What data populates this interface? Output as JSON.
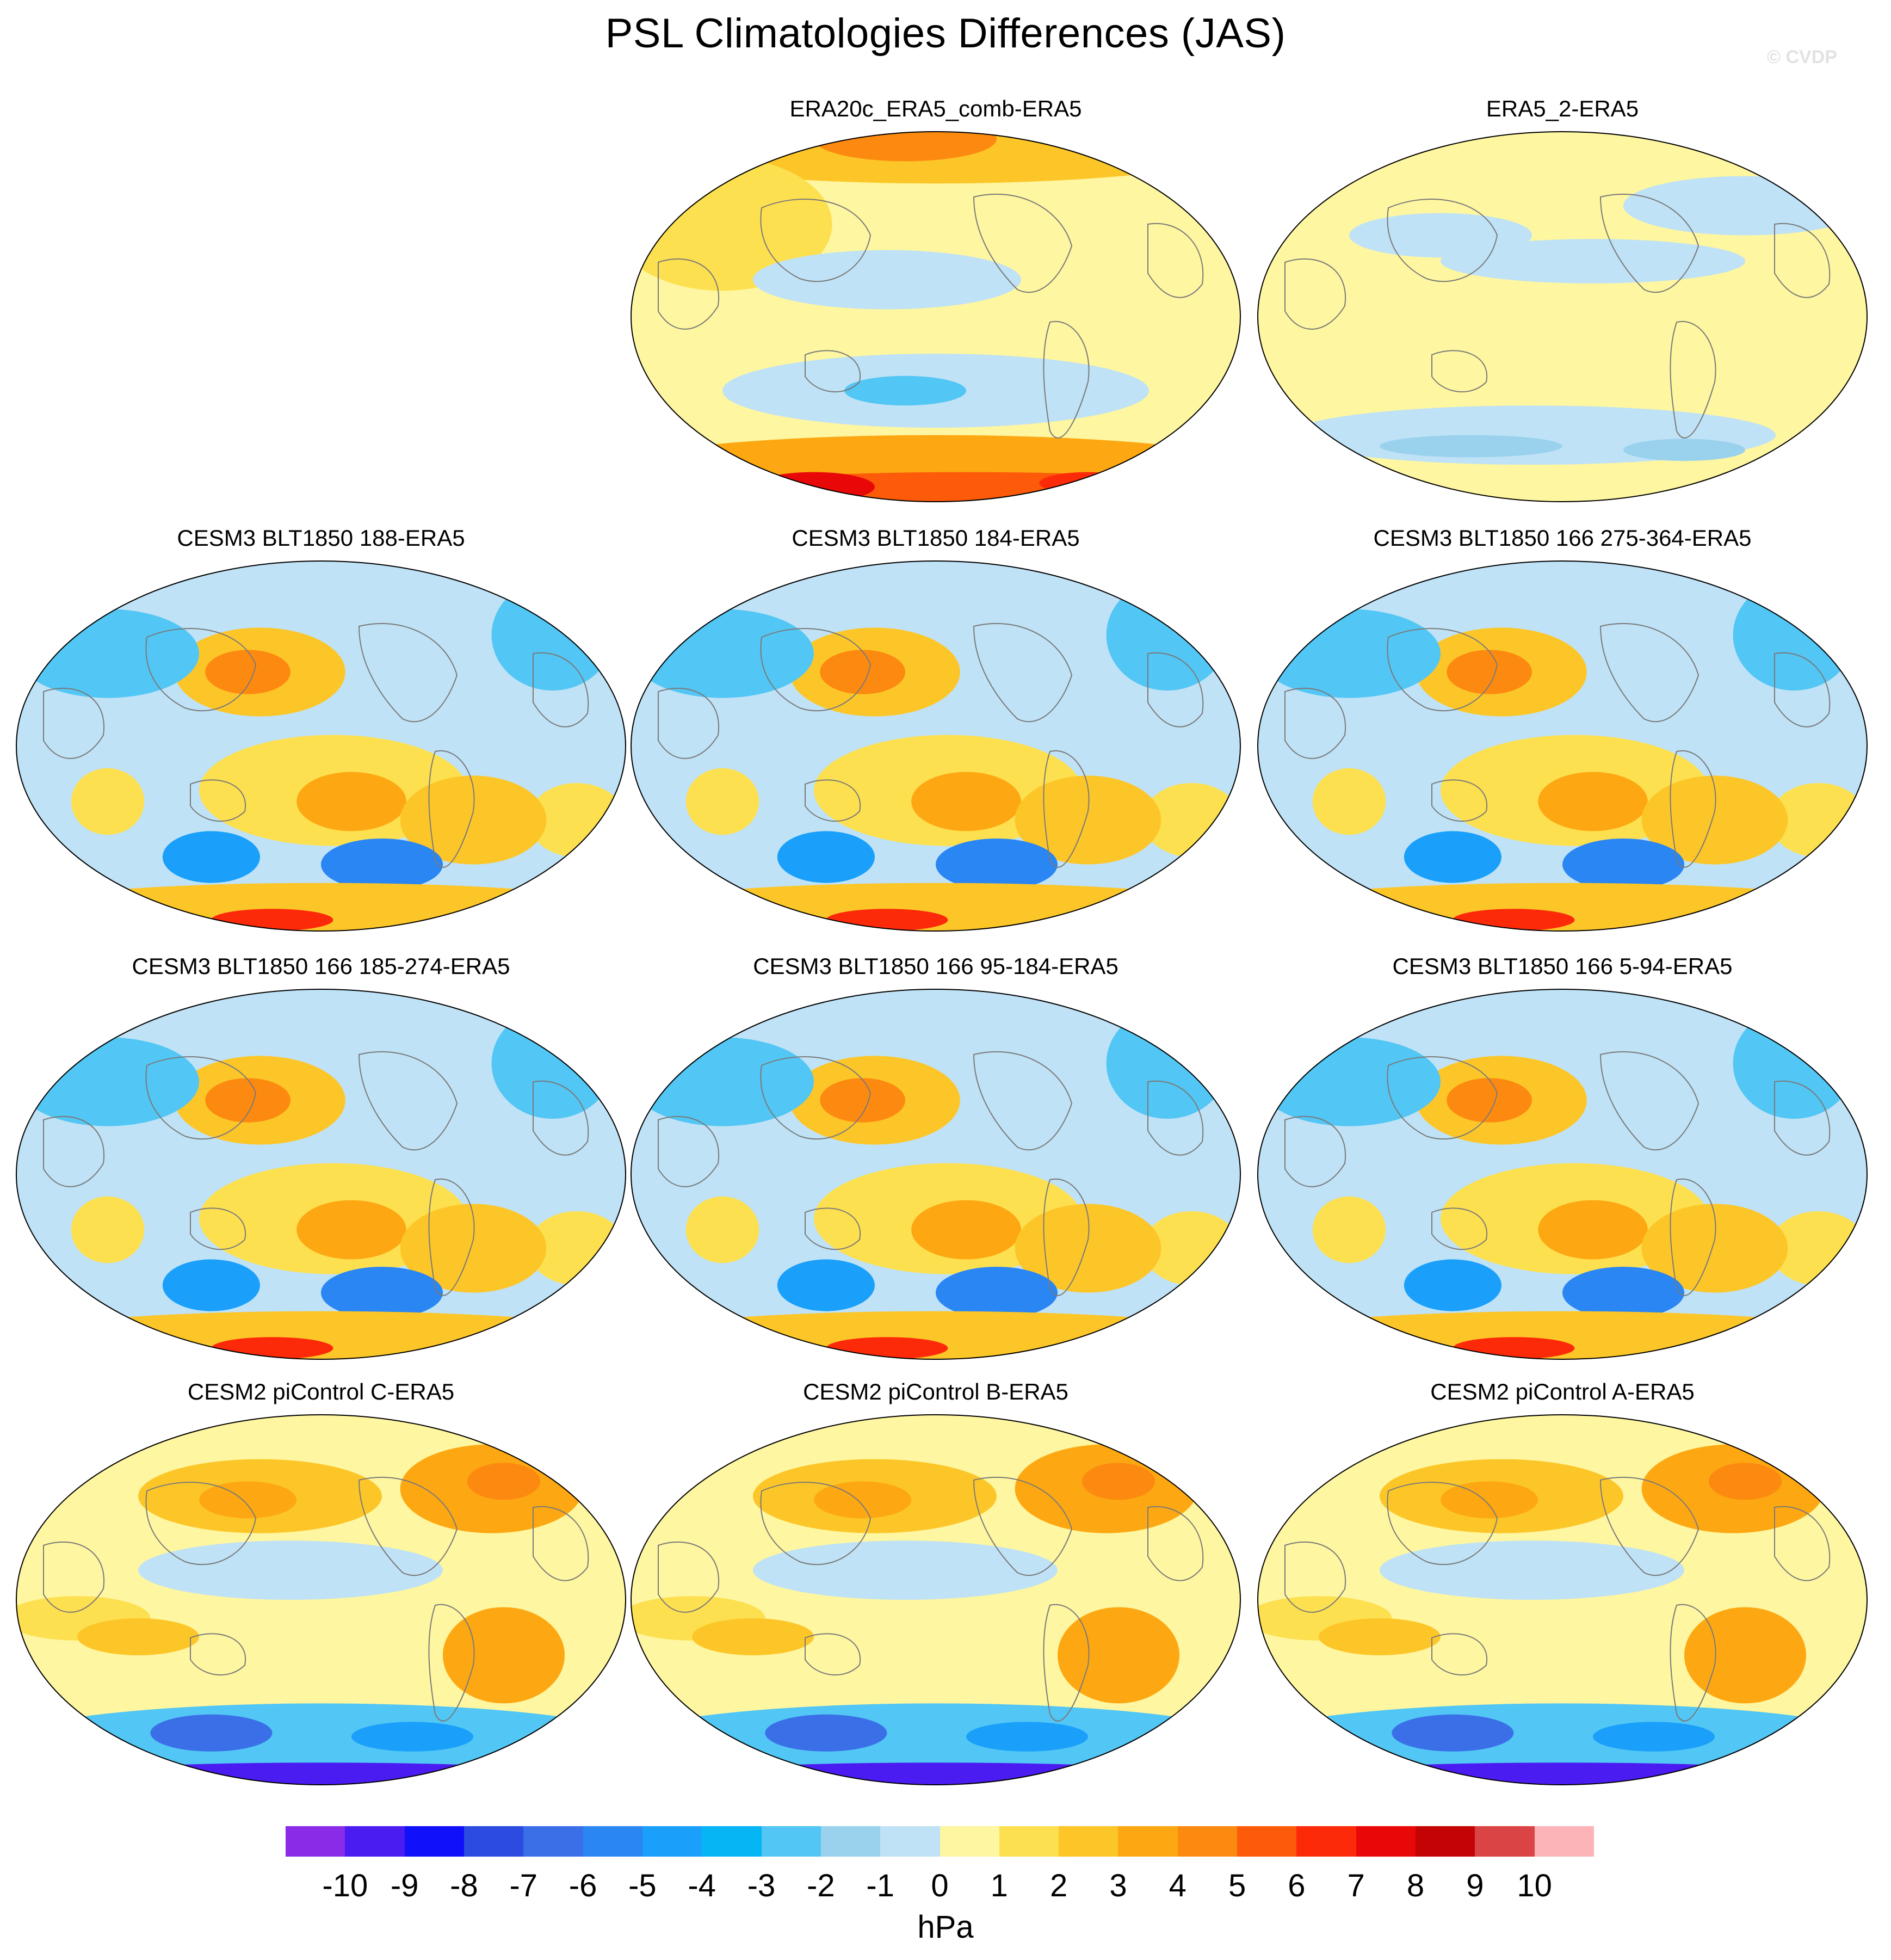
{
  "title": "PSL Climatologies Differences (JAS)",
  "watermark": "© CVDP",
  "panels": [
    {
      "id": "p1",
      "title": "ERA20c_ERA5_comb-ERA5",
      "pattern": "reanalysis_warm"
    },
    {
      "id": "p2",
      "title": "ERA5_2-ERA5",
      "pattern": "reanalysis_neutral"
    },
    {
      "id": "p3",
      "title": "CESM3 BLT1850 188-ERA5",
      "pattern": "cesm3"
    },
    {
      "id": "p4",
      "title": "CESM3 BLT1850 184-ERA5",
      "pattern": "cesm3"
    },
    {
      "id": "p5",
      "title": "CESM3 BLT1850 166 275-364-ERA5",
      "pattern": "cesm3"
    },
    {
      "id": "p6",
      "title": "CESM3 BLT1850 166 185-274-ERA5",
      "pattern": "cesm3"
    },
    {
      "id": "p7",
      "title": "CESM3 BLT1850 166 95-184-ERA5",
      "pattern": "cesm3"
    },
    {
      "id": "p8",
      "title": "CESM3 BLT1850 166 5-94-ERA5",
      "pattern": "cesm3"
    },
    {
      "id": "p9",
      "title": "CESM2 piControl C-ERA5",
      "pattern": "cesm2"
    },
    {
      "id": "p10",
      "title": "CESM2 piControl B-ERA5",
      "pattern": "cesm2"
    },
    {
      "id": "p11",
      "title": "CESM2 piControl A-ERA5",
      "pattern": "cesm2"
    }
  ],
  "colorbar": {
    "units": "hPa",
    "tick_labels": [
      "-10",
      "-9",
      "-8",
      "-7",
      "-6",
      "-5",
      "-4",
      "-3",
      "-2",
      "-1",
      "0",
      "1",
      "2",
      "3",
      "4",
      "5",
      "6",
      "7",
      "8",
      "9",
      "10"
    ],
    "colors": [
      "#8a2be8",
      "#4b1cf2",
      "#1010fa",
      "#2c4be0",
      "#3a6fe8",
      "#2a86f2",
      "#1aa0fa",
      "#06b6f4",
      "#52c6f4",
      "#9ad2ee",
      "#bfe2f6",
      "#fef6a0",
      "#fde050",
      "#fdc628",
      "#fda812",
      "#fd8a10",
      "#fd5a0a",
      "#fd2a0a",
      "#e80808",
      "#c40404",
      "#da4444",
      "#fcb4b8"
    ]
  }
}
